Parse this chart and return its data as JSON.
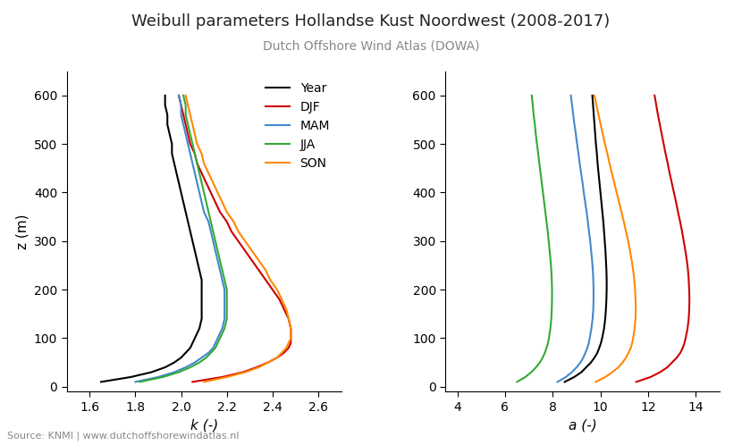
{
  "title": "Weibull parameters Hollandse Kust Noordwest (2008-2017)",
  "subtitle": "Dutch Offshore Wind Atlas (DOWA)",
  "source": "Source: KNMI | www.dutchoffshorewindatlas.nl",
  "xlabel_k": "k (-)",
  "xlabel_a": "a (-)",
  "ylabel": "z (m)",
  "xlim_k": [
    1.5,
    2.7
  ],
  "xlim_a": [
    3.5,
    15.0
  ],
  "ylim": [
    -10,
    650
  ],
  "yticks": [
    0,
    100,
    200,
    300,
    400,
    500,
    600
  ],
  "xticks_k": [
    1.6,
    1.8,
    2.0,
    2.2,
    2.4,
    2.6
  ],
  "xticks_a": [
    4,
    6,
    8,
    10,
    12,
    14
  ],
  "legend_labels": [
    "Year",
    "DJF",
    "MAM",
    "JJA",
    "SON"
  ],
  "colors": [
    "#000000",
    "#cc0000",
    "#4488cc",
    "#33aa33",
    "#ff8800"
  ],
  "heights": [
    10,
    20,
    30,
    40,
    50,
    60,
    70,
    80,
    90,
    100,
    120,
    140,
    160,
    180,
    200,
    220,
    240,
    260,
    280,
    300,
    320,
    340,
    360,
    380,
    400,
    420,
    440,
    460,
    480,
    500,
    520,
    540,
    560,
    580,
    600
  ],
  "k_Year": [
    1.65,
    1.78,
    1.87,
    1.93,
    1.97,
    2.0,
    2.02,
    2.04,
    2.05,
    2.06,
    2.08,
    2.09,
    2.09,
    2.09,
    2.09,
    2.09,
    2.08,
    2.07,
    2.06,
    2.05,
    2.04,
    2.03,
    2.02,
    2.01,
    2.0,
    1.99,
    1.98,
    1.97,
    1.96,
    1.96,
    1.95,
    1.94,
    1.94,
    1.93,
    1.93
  ],
  "k_DJF": [
    2.05,
    2.18,
    2.27,
    2.33,
    2.38,
    2.42,
    2.45,
    2.47,
    2.48,
    2.48,
    2.48,
    2.47,
    2.45,
    2.43,
    2.4,
    2.37,
    2.34,
    2.31,
    2.28,
    2.25,
    2.22,
    2.2,
    2.17,
    2.15,
    2.13,
    2.11,
    2.09,
    2.07,
    2.06,
    2.04,
    2.03,
    2.02,
    2.01,
    2.0,
    1.99
  ],
  "k_MAM": [
    1.8,
    1.9,
    1.97,
    2.02,
    2.06,
    2.09,
    2.12,
    2.14,
    2.15,
    2.16,
    2.18,
    2.19,
    2.19,
    2.19,
    2.19,
    2.18,
    2.17,
    2.16,
    2.15,
    2.14,
    2.13,
    2.12,
    2.1,
    2.09,
    2.08,
    2.07,
    2.06,
    2.05,
    2.04,
    2.03,
    2.02,
    2.01,
    2.0,
    2.0,
    1.99
  ],
  "k_JJA": [
    1.82,
    1.92,
    1.99,
    2.04,
    2.08,
    2.11,
    2.13,
    2.15,
    2.16,
    2.17,
    2.19,
    2.2,
    2.2,
    2.2,
    2.2,
    2.19,
    2.18,
    2.17,
    2.16,
    2.15,
    2.14,
    2.13,
    2.12,
    2.11,
    2.1,
    2.09,
    2.08,
    2.07,
    2.06,
    2.05,
    2.04,
    2.03,
    2.02,
    2.02,
    2.01
  ],
  "k_SON": [
    2.1,
    2.2,
    2.28,
    2.34,
    2.38,
    2.42,
    2.44,
    2.46,
    2.47,
    2.48,
    2.48,
    2.47,
    2.46,
    2.44,
    2.42,
    2.39,
    2.37,
    2.34,
    2.31,
    2.28,
    2.25,
    2.23,
    2.2,
    2.18,
    2.16,
    2.14,
    2.12,
    2.1,
    2.09,
    2.07,
    2.06,
    2.05,
    2.04,
    2.03,
    2.02
  ],
  "a_Year": [
    8.5,
    8.9,
    9.2,
    9.4,
    9.6,
    9.75,
    9.87,
    9.95,
    10.02,
    10.07,
    10.15,
    10.2,
    10.23,
    10.25,
    10.26,
    10.26,
    10.25,
    10.23,
    10.21,
    10.18,
    10.15,
    10.12,
    10.08,
    10.04,
    10.0,
    9.96,
    9.92,
    9.88,
    9.85,
    9.81,
    9.78,
    9.75,
    9.72,
    9.69,
    9.66
  ],
  "a_DJF": [
    11.5,
    12.1,
    12.5,
    12.8,
    13.0,
    13.2,
    13.35,
    13.45,
    13.52,
    13.57,
    13.65,
    13.7,
    13.72,
    13.73,
    13.72,
    13.7,
    13.67,
    13.62,
    13.56,
    13.49,
    13.42,
    13.34,
    13.25,
    13.17,
    13.08,
    12.99,
    12.9,
    12.82,
    12.73,
    12.65,
    12.57,
    12.49,
    12.41,
    12.34,
    12.27
  ],
  "a_MAM": [
    8.2,
    8.55,
    8.8,
    9.0,
    9.16,
    9.28,
    9.37,
    9.45,
    9.51,
    9.55,
    9.62,
    9.67,
    9.7,
    9.71,
    9.71,
    9.7,
    9.68,
    9.65,
    9.61,
    9.57,
    9.52,
    9.47,
    9.42,
    9.36,
    9.3,
    9.25,
    9.19,
    9.13,
    9.08,
    9.02,
    8.97,
    8.91,
    8.86,
    8.81,
    8.76
  ],
  "a_JJA": [
    6.5,
    6.85,
    7.1,
    7.3,
    7.46,
    7.58,
    7.67,
    7.74,
    7.8,
    7.84,
    7.9,
    7.94,
    7.96,
    7.97,
    7.97,
    7.96,
    7.94,
    7.91,
    7.87,
    7.83,
    7.79,
    7.74,
    7.69,
    7.64,
    7.59,
    7.54,
    7.49,
    7.44,
    7.39,
    7.34,
    7.29,
    7.25,
    7.2,
    7.16,
    7.12
  ],
  "a_SON": [
    9.8,
    10.2,
    10.5,
    10.75,
    10.93,
    11.07,
    11.18,
    11.27,
    11.33,
    11.37,
    11.43,
    11.47,
    11.48,
    11.47,
    11.45,
    11.42,
    11.37,
    11.31,
    11.24,
    11.16,
    11.07,
    10.98,
    10.88,
    10.78,
    10.68,
    10.58,
    10.48,
    10.38,
    10.29,
    10.19,
    10.1,
    10.01,
    9.92,
    9.83,
    9.75
  ]
}
